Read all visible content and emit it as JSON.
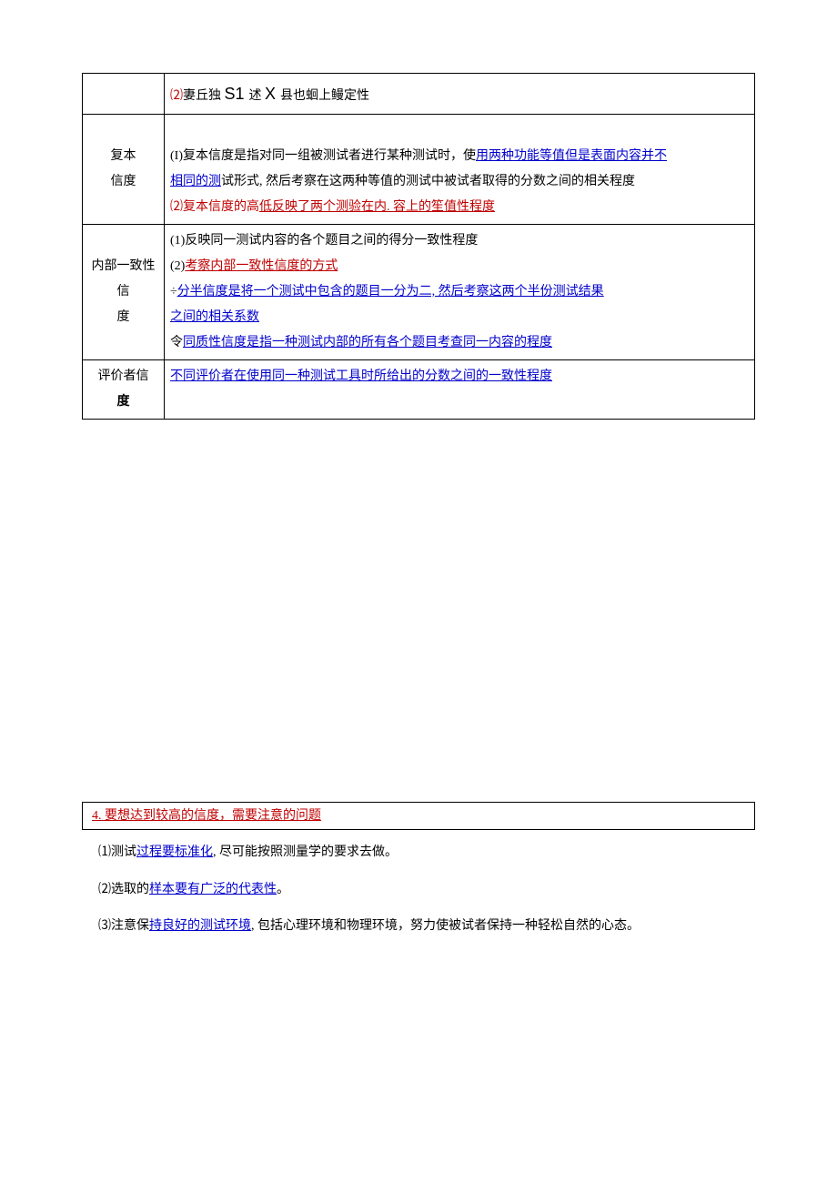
{
  "table": {
    "row0_cell2": {
      "prefix": "⑵",
      "text1": "妻丘独 ",
      "s1": "S1 ",
      "text2": "述 ",
      "x": "X ",
      "text3": "县也蛔上鳗定性"
    },
    "row1": {
      "label_line1": "复本",
      "label_line2": "信度",
      "cell_line1_prefix": "(I)复本信度是指对同一组被测试者进行某种测试时，使",
      "cell_line1_blue": "用两种功能等值但是表面内容并不",
      "cell_line2_blue": "相同的测",
      "cell_line2_text": "试形式, 然后考察在这两种等值的测试中被试者取得的分数之间的相关程度",
      "cell_line3_prefix": "⑵复本信度的高",
      "cell_line3_red": "低反映了两个测验在内. 容上的笙值性程度"
    },
    "row2": {
      "label_line1": "内部一致性信",
      "label_line2": "度",
      "cell_line1": "(1)反映同一测试内容的各个题目之间的得分一致性程度",
      "cell_line2_prefix": "(2)",
      "cell_line2_red": "考察内部一致性信度的方式",
      "cell_line3_sym": "÷",
      "cell_line3_blue": "分半信度是将一个测试中包含的题目一分为二, 然后考察这两个半份测试结果",
      "cell_line4_blue": "之间的相关系数",
      "cell_line5_sym": "令",
      "cell_line5_blue": "同质性信度是指一种测试内部的所有各个题目考查同一内容的程度"
    },
    "row3": {
      "label_line1": "评价者信",
      "label_line2": "度",
      "cell_blue": "不同评价者在使用同一种测试工具时所给出的分数之间的一致性程度"
    }
  },
  "section4": {
    "header": "4. 要想达到较高的信度，需要注意的问题",
    "item1_prefix": "⑴测试",
    "item1_blue": "过程要标准化",
    "item1_suffix": ", 尽可能按照测量学的要求去做。",
    "item2_prefix": "⑵选取的",
    "item2_blue": "样本要有广泛的代表性",
    "item2_suffix": "。",
    "item3_prefix": "⑶注意保",
    "item3_blue": "持良好的测试环境",
    "item3_suffix": ", 包括心理环境和物理环境，努力使被试者保持一种轻松自然的心态。"
  }
}
